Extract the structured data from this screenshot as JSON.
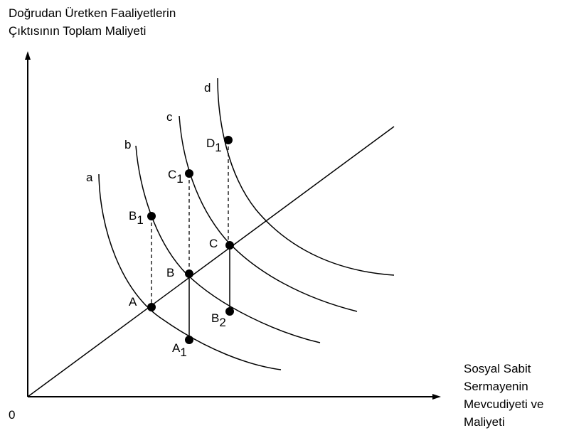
{
  "axes": {
    "y_label_lines": [
      "Doğrudan Üretken Faaliyetlerin",
      "Çıktısının Toplam Maliyeti"
    ],
    "x_label_lines": [
      "Sosyal Sabit",
      "Sermayenin",
      "Mevcudiyeti ve",
      "Maliyeti"
    ],
    "origin_label": "0"
  },
  "curves": [
    {
      "id": "a",
      "label": "a"
    },
    {
      "id": "b",
      "label": "b"
    },
    {
      "id": "c",
      "label": "c"
    },
    {
      "id": "d",
      "label": "d"
    }
  ],
  "points": [
    {
      "id": "A",
      "label": "A",
      "sub": ""
    },
    {
      "id": "A1",
      "label": "A",
      "sub": "1"
    },
    {
      "id": "B",
      "label": "B",
      "sub": ""
    },
    {
      "id": "B1",
      "label": "B",
      "sub": "1"
    },
    {
      "id": "B2",
      "label": "B",
      "sub": "2"
    },
    {
      "id": "C",
      "label": "C",
      "sub": ""
    },
    {
      "id": "C1",
      "label": "C",
      "sub": "1"
    },
    {
      "id": "D1",
      "label": "D",
      "sub": "1"
    }
  ],
  "style": {
    "line_color": "#000000",
    "background": "#ffffff"
  }
}
